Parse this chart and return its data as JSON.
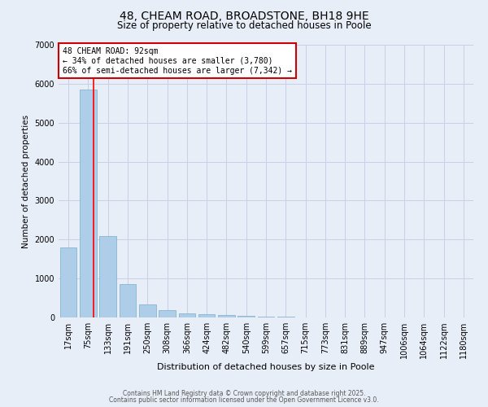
{
  "title1": "48, CHEAM ROAD, BROADSTONE, BH18 9HE",
  "title2": "Size of property relative to detached houses in Poole",
  "xlabel": "Distribution of detached houses by size in Poole",
  "ylabel": "Number of detached properties",
  "bar_labels": [
    "17sqm",
    "75sqm",
    "133sqm",
    "191sqm",
    "250sqm",
    "308sqm",
    "366sqm",
    "424sqm",
    "482sqm",
    "540sqm",
    "599sqm",
    "657sqm",
    "715sqm",
    "773sqm",
    "831sqm",
    "889sqm",
    "947sqm",
    "1006sqm",
    "1064sqm",
    "1122sqm",
    "1180sqm"
  ],
  "bar_values": [
    1800,
    5850,
    2100,
    850,
    330,
    180,
    100,
    80,
    55,
    35,
    20,
    15,
    10,
    8,
    5,
    4,
    3,
    2,
    2,
    1,
    1
  ],
  "bar_color": "#aecde8",
  "bar_edge_color": "#7aaec8",
  "background_color": "#e8eef8",
  "grid_color": "#c8d0e8",
  "red_line_x": 1.25,
  "ylim": [
    0,
    7000
  ],
  "annotation_text": "48 CHEAM ROAD: 92sqm\n← 34% of detached houses are smaller (3,780)\n66% of semi-detached houses are larger (7,342) →",
  "annotation_box_color": "#ffffff",
  "annotation_box_edge": "#cc0000",
  "footer1": "Contains HM Land Registry data © Crown copyright and database right 2025.",
  "footer2": "Contains public sector information licensed under the Open Government Licence v3.0."
}
